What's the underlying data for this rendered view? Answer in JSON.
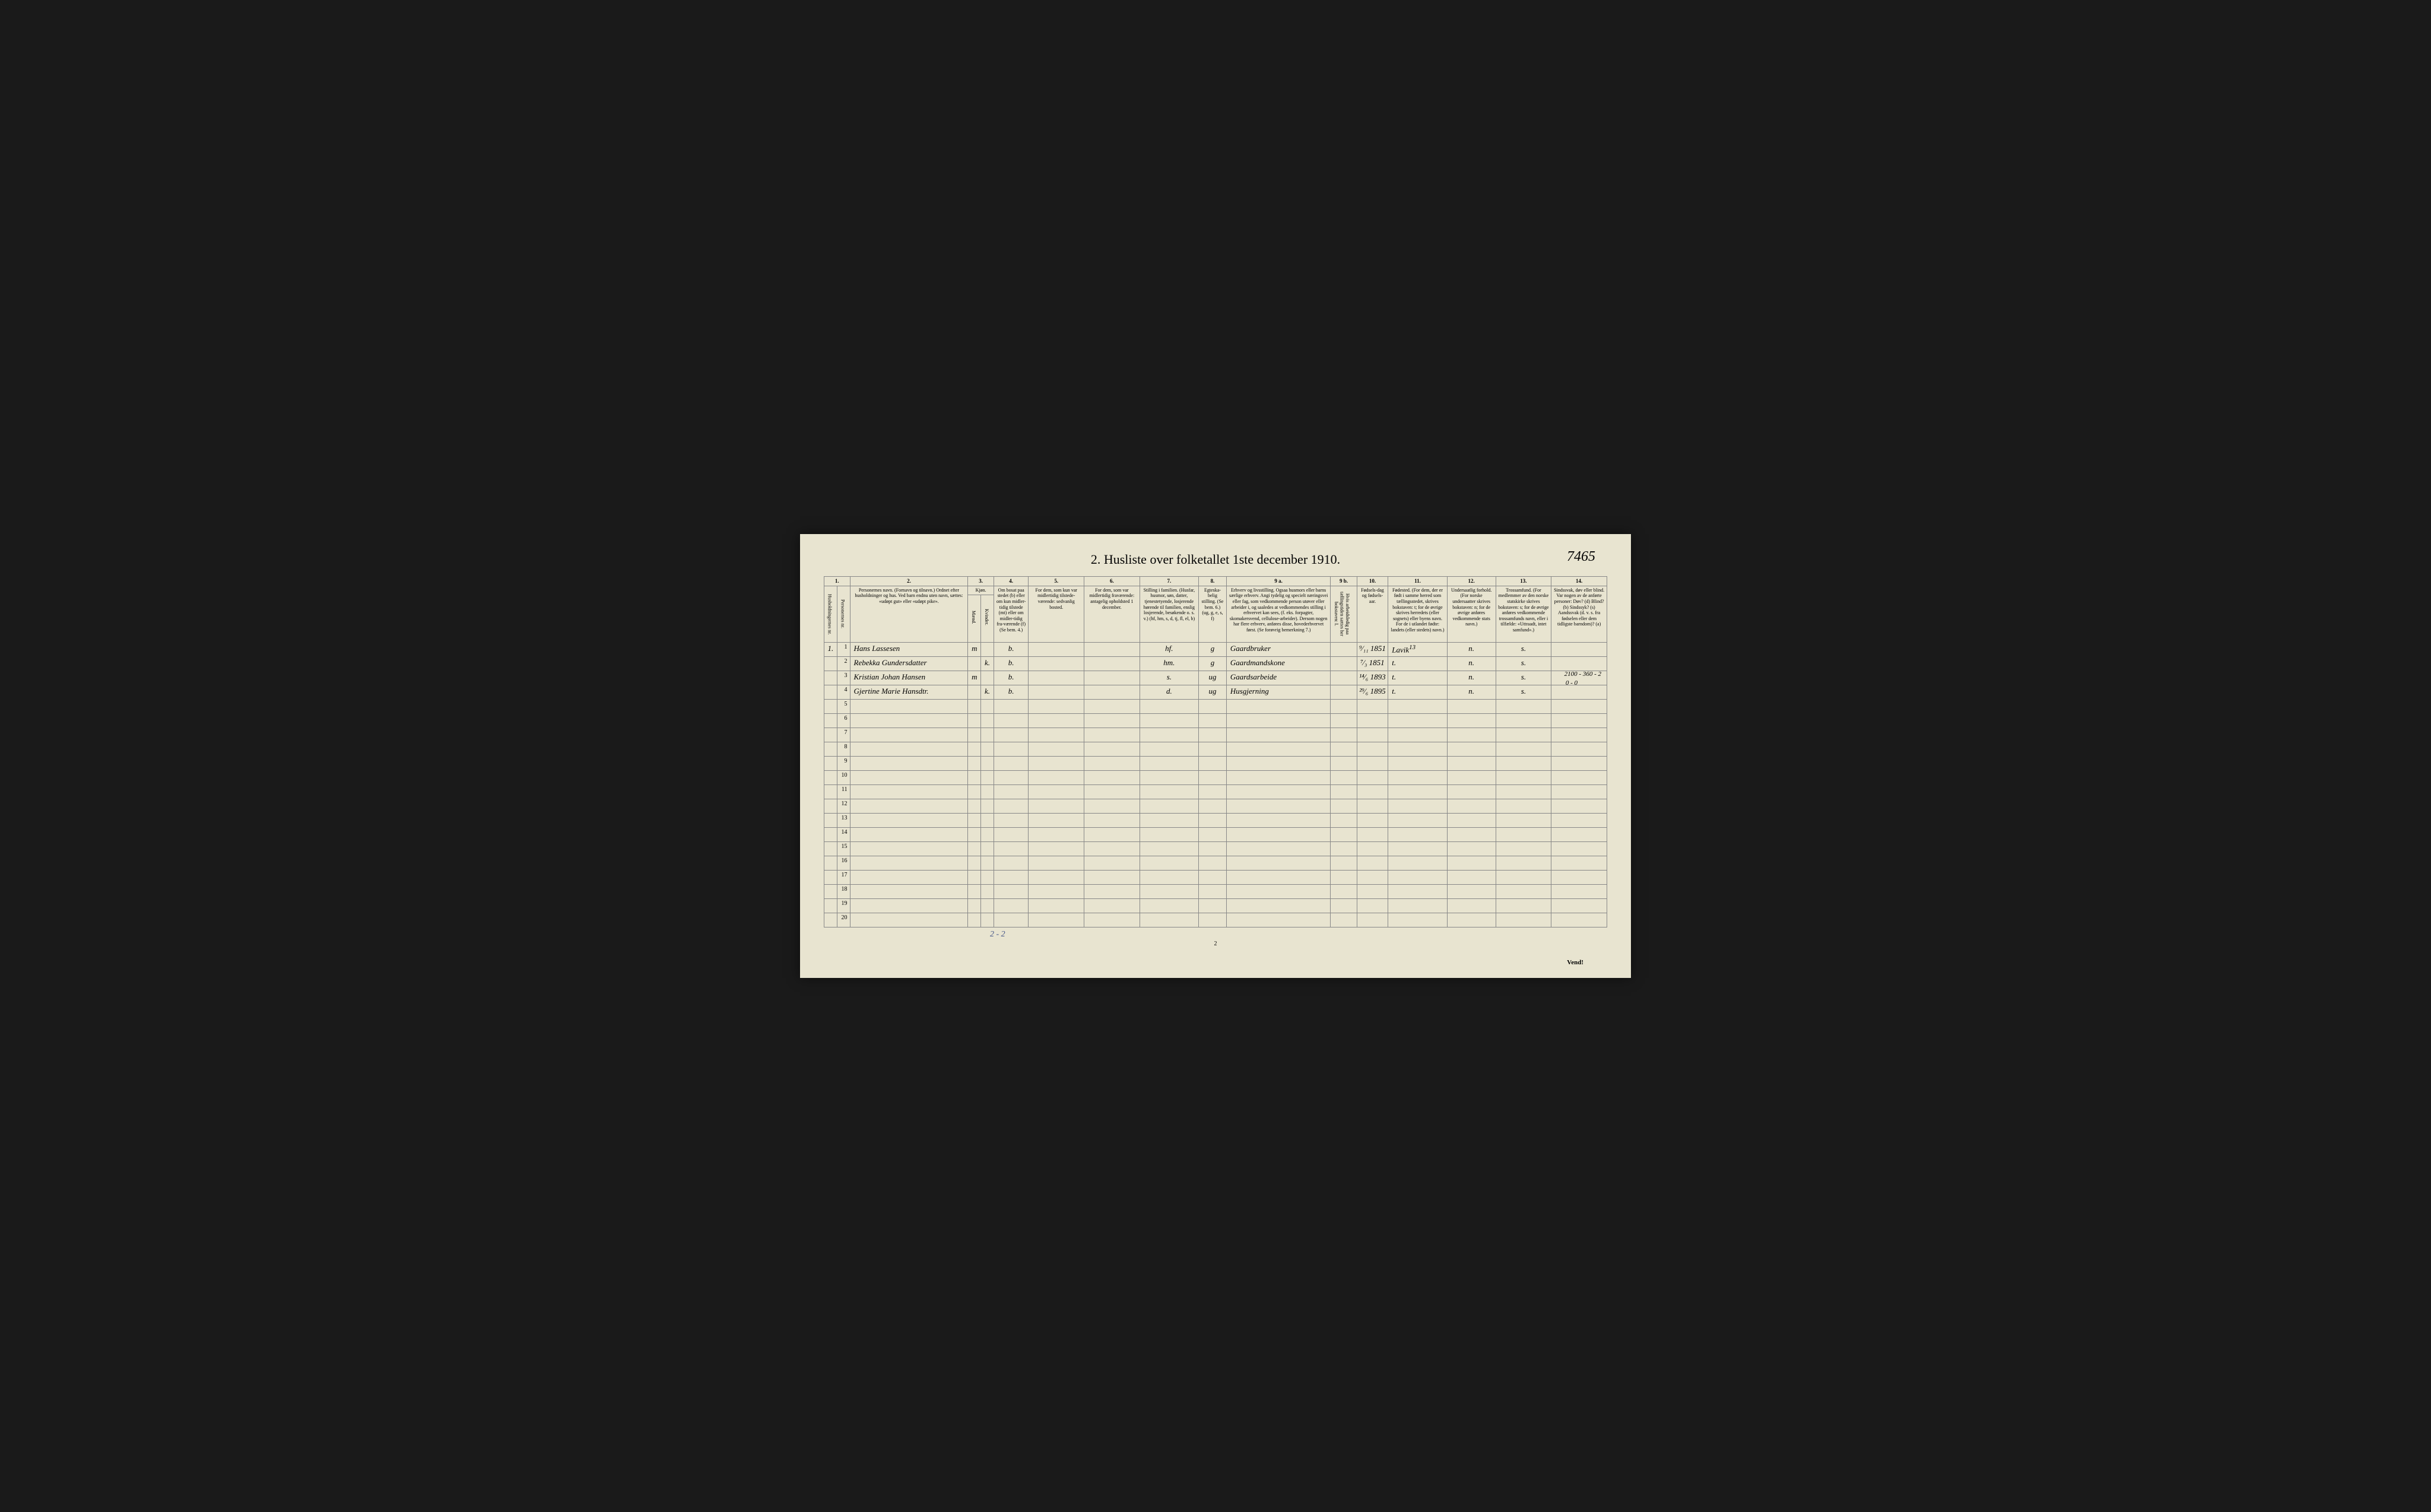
{
  "title": "2. Husliste over folketallet 1ste december 1910.",
  "handwritten_top_right": "7465",
  "margin_note_top": "2100 - 360 - 2",
  "margin_note_top2": "0 - 0",
  "footer_handwriting": "2 - 2",
  "page_number": "2",
  "vend": "Vend!",
  "colors": {
    "page_bg": "#e8e4d0",
    "border": "#888888",
    "text": "#2a2a2a",
    "handwriting": "#3a3a3a",
    "blue_ink": "#4a5a8a"
  },
  "column_numbers": [
    "1.",
    "",
    "2.",
    "3.",
    "",
    "4.",
    "5.",
    "6.",
    "7.",
    "8.",
    "9 a.",
    "9 b.",
    "10.",
    "11.",
    "12.",
    "13.",
    "14."
  ],
  "headers": {
    "c1a": "Husholdningernes nr.",
    "c1b": "Personernes nr.",
    "c2": "Personernes navn.\n(Fornavn og tilnavn.)\nOrdnet efter husholdninger og hus.\nVed barn endnu uten navn, sættes: «udøpt gut» eller «udøpt pike».",
    "c3": "Kjøn.",
    "c3a": "Mænd.",
    "c3b": "Kvinder.",
    "c4": "Om bosat paa stedet (b) eller om kun midler-tidig tilstede (mt) eller om midler-tidig fra-værende (f) (Se bem. 4.)",
    "c5": "For dem, som kun var midlertidig tilstede-værende:\nsedvanlig bosted.",
    "c6": "For dem, som var midlertidig fraværende:\nantagelig opholdsted 1 december.",
    "c7": "Stilling i familien.\n(Husfar, husmor, søn, datter, tjenestetyende, losjerende hørende til familien, enslig losjerende, besøkende o. s. v.)\n(hf, hm, s, d, tj, fl, el, b)",
    "c8": "Egteska-belig stilling.\n(Se bem. 6.)\n(ug, g, e, s, f)",
    "c9a": "Erhverv og livsstilling.\nOgsaa husmors eller barns særlige erhverv. Angi tydelig og specielt næringsvei eller fag, som vedkommende person utøver eller arbeider i, og saaledes at vedkommendes stilling i erhvervet kan sees, (f. eks. forpagter, skomakersvend, cellulose-arbeider). Dersom nogen har flere erhverv, anføres disse, hovederhvervet først.\n(Se forøvrig bemerkning 7.)",
    "c9b": "Hvis arbeidsledig paa tællingstiden sættes her bokstaven: l.",
    "c10": "Fødsels-dag og fødsels-aar.",
    "c11": "Fødested.\n(For dem, der er født i samme herred som tællingsstedet, skrives bokstaven: t; for de øvrige skrives herredets (eller sognets) eller byens navn. For de i utlandet fødte: landets (eller stedets) navn.)",
    "c12": "Undersaatlig forhold.\n(For norske undersaatter skrives bokstaven: n; for de øvrige anføres vedkommende stats navn.)",
    "c13": "Trossamfund.\n(For medlemmer av den norske statskirke skrives bokstaven: s; for de øvrige anføres vedkommende trossamfunds navn, eller i tilfælde: «Uttraadt, intet samfund».)",
    "c14": "Sindssvak, døv eller blind.\nVar nogen av de anførte personer:\nDøv? (d)\nBlind? (b)\nSindssyk? (s)\nAandssvak (d. v. s. fra fødselen eller dem tidligste barndom)? (a)"
  },
  "rows": [
    {
      "hh": "1.",
      "pn": "1",
      "name": "Hans Lassesen",
      "m": "m",
      "k": "",
      "b": "b.",
      "c5": "",
      "c6": "",
      "c7": "hf.",
      "c8": "g",
      "c9a": "Gaardbruker",
      "c9b": "",
      "c10": "⁹⁄₁₁ 1851",
      "c11": "Lavik",
      "c11_sup": "13",
      "c12": "n.",
      "c13": "s.",
      "c14": ""
    },
    {
      "hh": "",
      "pn": "2",
      "name": "Rebekka Gundersdatter",
      "m": "",
      "k": "k.",
      "b": "b.",
      "c5": "",
      "c6": "",
      "c7": "hm.",
      "c8": "g",
      "c9a": "Gaardmandskone",
      "c9b": "",
      "c10": "⁷⁄₃ 1851",
      "c11": "t.",
      "c11_sup": "",
      "c12": "n.",
      "c13": "s.",
      "c14": ""
    },
    {
      "hh": "",
      "pn": "3",
      "name": "Kristian Johan Hansen",
      "m": "m",
      "k": "",
      "b": "b.",
      "c5": "",
      "c6": "",
      "c7": "s.",
      "c8": "ug",
      "c9a": "Gaardsarbeide",
      "c9b": "",
      "c10": "¹⁴⁄₆ 1893",
      "c11": "t.",
      "c11_sup": "",
      "c12": "n.",
      "c13": "s.",
      "c14": ""
    },
    {
      "hh": "",
      "pn": "4",
      "name": "Gjertine Marie Hansdtr.",
      "m": "",
      "k": "k.",
      "b": "b.",
      "c5": "",
      "c6": "",
      "c7": "d.",
      "c8": "ug",
      "c9a": "Husgjerning",
      "c9b": "",
      "c10": "²⁹⁄₆ 1895",
      "c11": "t.",
      "c11_sup": "",
      "c12": "n.",
      "c13": "s.",
      "c14": ""
    }
  ],
  "empty_rows": [
    5,
    6,
    7,
    8,
    9,
    10,
    11,
    12,
    13,
    14,
    15,
    16,
    17,
    18,
    19,
    20
  ]
}
